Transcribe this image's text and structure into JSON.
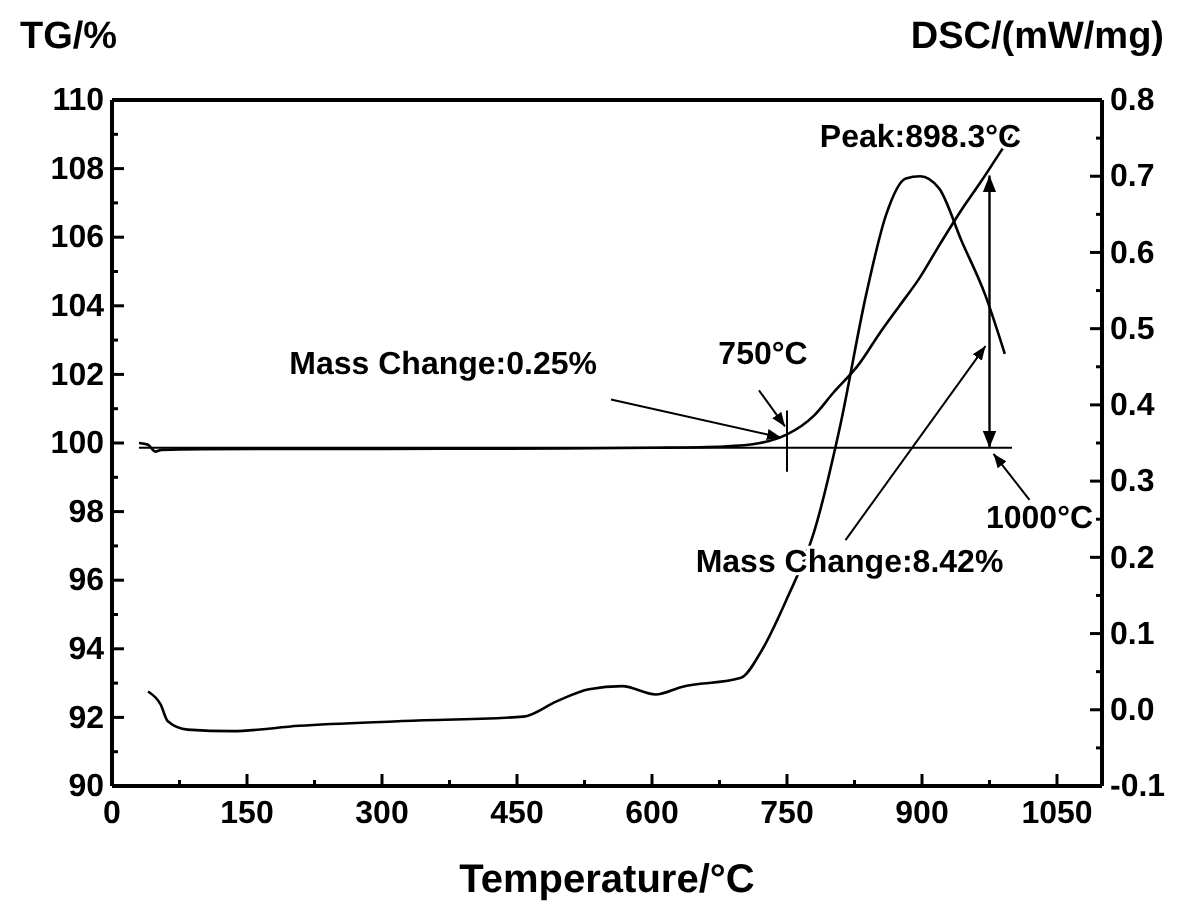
{
  "chart_data": {
    "type": "line",
    "xlabel": "Temperature/°C",
    "ylabel": "TG/%",
    "y2label": "DSC/(mW/mg)",
    "xlim": [
      0,
      1100
    ],
    "xticks": [
      0,
      {
        "value": 75,
        "label": null
      },
      150,
      {
        "value": 225,
        "label": null
      },
      300,
      {
        "value": 375,
        "label": null
      },
      450,
      {
        "value": 525,
        "label": null
      },
      600,
      {
        "value": 675,
        "label": null
      },
      750,
      {
        "value": 825,
        "label": null
      },
      900,
      {
        "value": 975,
        "label": null
      },
      1050
    ],
    "ylim": [
      90,
      110
    ],
    "yticks": [
      90,
      {
        "value": 91,
        "label": null
      },
      92,
      {
        "value": 93,
        "label": null
      },
      94,
      {
        "value": 95,
        "label": null
      },
      96,
      {
        "value": 97,
        "label": null
      },
      98,
      {
        "value": 99,
        "label": null
      },
      100,
      {
        "value": 101,
        "label": null
      },
      102,
      {
        "value": 103,
        "label": null
      },
      104,
      {
        "value": 105,
        "label": null
      },
      106,
      {
        "value": 107,
        "label": null
      },
      108,
      {
        "value": 109,
        "label": null
      },
      110
    ],
    "y2lim": [
      -0.1,
      0.8
    ],
    "y2ticks": [
      -0.1,
      {
        "value": -0.05,
        "label": null
      },
      {
        "value": 0,
        "label": "0.0"
      },
      {
        "value": 0.05,
        "label": null
      },
      0.1,
      {
        "value": 0.15,
        "label": null
      },
      0.2,
      {
        "value": 0.25,
        "label": null
      },
      0.3,
      {
        "value": 0.35,
        "label": null
      },
      0.4,
      {
        "value": 0.45,
        "label": null
      },
      0.5,
      {
        "value": 0.55,
        "label": null
      },
      0.6,
      {
        "value": 0.65,
        "label": null
      },
      0.7,
      {
        "value": 0.75,
        "label": null
      },
      0.8
    ],
    "series": [
      {
        "color": "#000000",
        "x": [
          30,
          40,
          48,
          55,
          100,
          300,
          500,
          600,
          680,
          720,
          750,
          780,
          801,
          830,
          853,
          875,
          897,
          920,
          944,
          965,
          985,
          1000
        ],
        "values": [
          100.0,
          99.95,
          99.75,
          99.8,
          99.82,
          99.83,
          99.84,
          99.86,
          99.9,
          100.0,
          100.25,
          100.8,
          101.45,
          102.3,
          103.2,
          104.0,
          104.8,
          105.8,
          106.8,
          107.6,
          108.4,
          109.0
        ]
      },
      {
        "color": "#000000",
        "axis": "y2",
        "x": [
          40,
          54,
          62,
          84,
          134,
          208,
          318,
          457,
          494,
          530,
          567,
          604,
          633,
          699,
          721,
          750,
          780,
          809,
          838,
          860,
          882,
          898,
          919,
          944,
          970,
          992
        ],
        "values": [
          0.024,
          0.007,
          -0.015,
          -0.026,
          -0.028,
          -0.021,
          -0.015,
          -0.009,
          0.011,
          0.027,
          0.031,
          0.02,
          0.03,
          0.042,
          0.076,
          0.146,
          0.233,
          0.372,
          0.545,
          0.649,
          0.697,
          0.7,
          0.684,
          0.615,
          0.545,
          0.467
        ]
      }
    ],
    "ref_lines": [
      {
        "axis": "y",
        "value": 99.86
      }
    ],
    "annotations": [
      {
        "text": "Peak:898.3°C",
        "x": 898.3,
        "y": 107.8
      },
      {
        "text": "750°C",
        "x": 750,
        "y": 100.25
      },
      {
        "text": "Mass Change:0.25%",
        "x": 750,
        "y": 100.1
      },
      {
        "text": "1000°C",
        "x": 975,
        "y": 99.86
      },
      {
        "text": "Mass Change:8.42%",
        "x": 975,
        "y": 103
      }
    ]
  }
}
